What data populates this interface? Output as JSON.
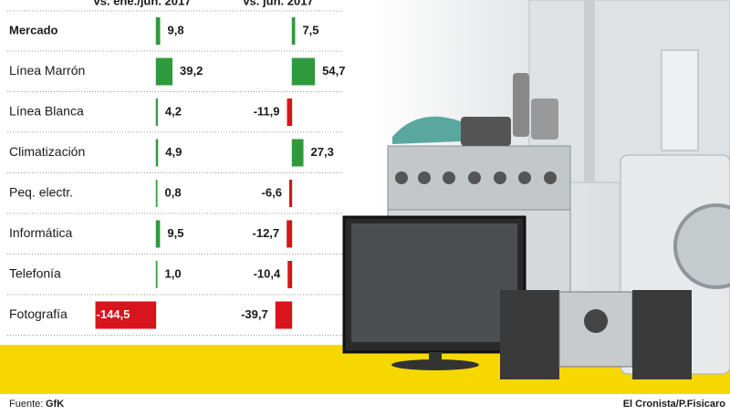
{
  "chart_data": {
    "type": "bar",
    "categories": [
      "Mercado",
      "Línea Marrón",
      "Línea Blanca",
      "Climatización",
      "Peq. electr.",
      "Informática",
      "Telefonía",
      "Fotografía"
    ],
    "series": [
      {
        "name": "vs. ene./jun. 2017",
        "values": [
          9.8,
          39.2,
          4.2,
          4.9,
          0.8,
          9.5,
          1.0,
          -144.5
        ],
        "value_labels": [
          "9,8",
          "39,2",
          "4,2",
          "4,9",
          "0,8",
          "9,5",
          "1,0",
          "-144,5"
        ]
      },
      {
        "name": "vs. jun. 2017",
        "values": [
          7.5,
          54.7,
          -11.9,
          27.3,
          -6.6,
          -12.7,
          -10.4,
          -39.7
        ],
        "value_labels": [
          "7,5",
          "54,7",
          "-11,9",
          "27,3",
          "-6,6",
          "-12,7",
          "-10,4",
          "-39,7"
        ]
      }
    ],
    "positive_color": "#2f9a3c",
    "negative_color": "#d8141c",
    "source_label": "Fuente:",
    "source": "GfK",
    "credit": "El Cronista/P.Fisicaro"
  }
}
